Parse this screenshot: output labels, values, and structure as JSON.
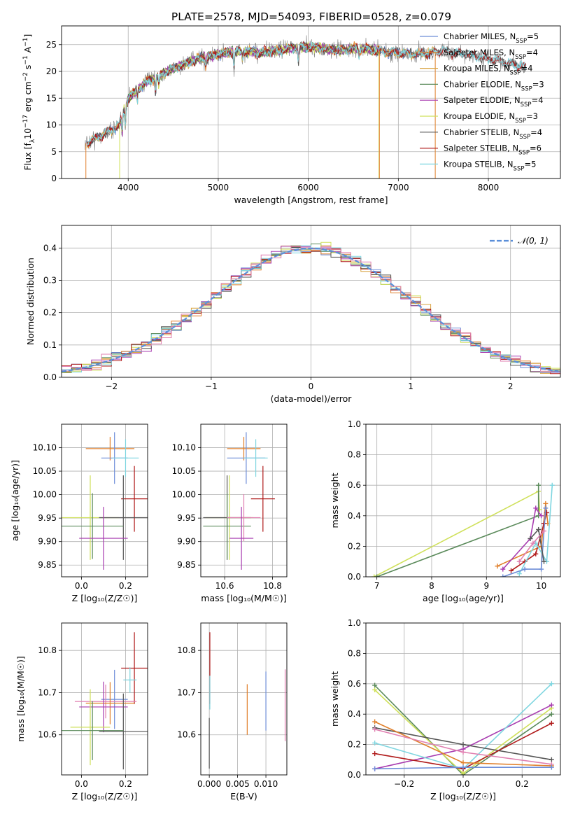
{
  "title": "PLATE=2578, MJD=54093, FIBERID=0528, z=0.079",
  "colors": {
    "chabrier_miles": "#6e8ed8",
    "salpeter_miles": "#e07f2a",
    "kroupa_miles": "#d9a441",
    "chabrier_elodie": "#5a8a5a",
    "salpeter_elodie": "#a83cb0",
    "kroupa_elodie": "#cfe05a",
    "chabrier_stelib": "#555555",
    "salpeter_stelib": "#b01a1a",
    "kroupa_stelib": "#7fd6e0",
    "pink": "#e07fb0",
    "gaussian": "#5b8fd9"
  },
  "chart_data": [
    {
      "id": "spectrum",
      "type": "line",
      "xlabel": "wavelength [Angstrom, rest frame]",
      "ylabel": "Flux [f",
      "ylabel_full": "Flux [fλ10⁻¹⁷ erg cm⁻² s⁻¹ A⁻¹]",
      "xlim": [
        3260,
        8800
      ],
      "ylim": [
        0,
        28.5
      ],
      "xticks": [
        "4000",
        "5000",
        "6000",
        "7000",
        "8000"
      ],
      "yticks": [
        "0",
        "5",
        "10",
        "15",
        "20",
        "25"
      ],
      "legend_position": "right",
      "legend": [
        "Chabrier MILES, N_SSP=5",
        "Salpeter MILES, N_SSP=4",
        "Kroupa MILES, N_SSP=4",
        "Chabrier ELODIE, N_SSP=3",
        "Salpeter ELODIE, N_SSP=4",
        "Kroupa ELODIE, N_SSP=3",
        "Chabrier STELIB, N_SSP=4",
        "Salpeter STELIB, N_SSP=6",
        "Kroupa STELIB, N_SSP=5"
      ],
      "continuum_x": [
        3520,
        3700,
        3900,
        4000,
        4200,
        4500,
        4800,
        5000,
        5200,
        5500,
        5800,
        6000,
        6300,
        6600,
        6900,
        7200,
        7500,
        7800,
        8100,
        8400
      ],
      "continuum_y": [
        6.5,
        8.0,
        10.0,
        15.0,
        18.0,
        20.5,
        22.5,
        23.2,
        23.8,
        23.5,
        24.3,
        24.6,
        24.0,
        24.3,
        23.6,
        23.2,
        23.8,
        23.0,
        22.0,
        20.8
      ]
    },
    {
      "id": "residual_histogram",
      "type": "line",
      "xlabel": "(data-model)/error",
      "ylabel": "Normed distribution",
      "xlim": [
        -2.5,
        2.5
      ],
      "ylim": [
        0,
        0.47
      ],
      "xticks": [
        "−2",
        "−1",
        "0",
        "1",
        "2"
      ],
      "yticks": [
        "0.0",
        "0.1",
        "0.2",
        "0.3",
        "0.4"
      ],
      "legend": [
        "𝒩(0, 1)"
      ],
      "legend_position": "top-right",
      "gaussian": {
        "mean": 0,
        "sigma": 1
      }
    },
    {
      "id": "age_vs_Z",
      "type": "scatter",
      "xlabel": "Z [log₁₀(Z/Z☉)]",
      "ylabel": "age  [log₁₀(age/yr)]",
      "xlim": [
        -0.09,
        0.3
      ],
      "ylim": [
        9.825,
        10.15
      ],
      "xticks": [
        "0.0",
        "0.2"
      ],
      "yticks": [
        "9.85",
        "9.90",
        "9.95",
        "10.00",
        "10.05",
        "10.10"
      ],
      "points": [
        {
          "c": "salpeter_miles",
          "x": 0.13,
          "xe": 0.11,
          "y": 10.098,
          "ye": 0.025
        },
        {
          "c": "chabrier_miles",
          "x": 0.15,
          "xe": 0.06,
          "y": 10.078,
          "ye": 0.055
        },
        {
          "c": "kroupa_stelib",
          "x": 0.2,
          "xe": 0.06,
          "y": 10.078,
          "ye": 0.04
        },
        {
          "c": "salpeter_stelib",
          "x": 0.24,
          "xe": 0.06,
          "y": 9.991,
          "ye": 0.07
        },
        {
          "c": "kroupa_elodie",
          "x": 0.04,
          "xe": 0.13,
          "y": 9.951,
          "ye": 0.09
        },
        {
          "c": "chabrier_stelib",
          "x": 0.19,
          "xe": 0.11,
          "y": 9.951,
          "ye": 0.09
        },
        {
          "c": "chabrier_elodie",
          "x": 0.05,
          "xe": 0.14,
          "y": 9.933,
          "ye": 0.07
        },
        {
          "c": "salpeter_elodie",
          "x": 0.1,
          "xe": 0.11,
          "y": 9.907,
          "ye": 0.067
        }
      ]
    },
    {
      "id": "age_vs_mass",
      "type": "scatter",
      "xlabel": "mass [log₁₀(M/M☉)]",
      "ylabel": "",
      "xlim": [
        10.5,
        10.86
      ],
      "ylim": [
        9.825,
        10.15
      ],
      "xticks": [
        "10.6",
        "10.8"
      ],
      "yticks": [
        "9.85",
        "9.90",
        "9.95",
        "10.00",
        "10.05",
        "10.10"
      ],
      "points": [
        {
          "c": "salpeter_miles",
          "x": 10.68,
          "xe": 0.07,
          "y": 10.098,
          "ye": 0.025
        },
        {
          "c": "chabrier_miles",
          "x": 10.69,
          "xe": 0.08,
          "y": 10.078,
          "ye": 0.055
        },
        {
          "c": "kroupa_stelib",
          "x": 10.73,
          "xe": 0.05,
          "y": 10.078,
          "ye": 0.04
        },
        {
          "c": "salpeter_stelib",
          "x": 10.76,
          "xe": 0.05,
          "y": 9.991,
          "ye": 0.07
        },
        {
          "c": "kroupa_elodie",
          "x": 10.62,
          "xe": 0.1,
          "y": 9.951,
          "ye": 0.09
        },
        {
          "c": "chabrier_stelib",
          "x": 10.61,
          "xe": 0.1,
          "y": 9.951,
          "ye": 0.09
        },
        {
          "c": "chabrier_elodie",
          "x": 10.61,
          "xe": 0.1,
          "y": 9.933,
          "ye": 0.07
        },
        {
          "c": "pink",
          "x": 10.68,
          "xe": 0.07,
          "y": 9.951,
          "ye": 0.05
        },
        {
          "c": "salpeter_elodie",
          "x": 10.67,
          "xe": 0.05,
          "y": 9.907,
          "ye": 0.067
        }
      ]
    },
    {
      "id": "mass_weight_vs_age",
      "type": "line",
      "xlabel": "age  [log₁₀(age/yr)]",
      "ylabel": "mass weight",
      "xlim": [
        6.8,
        10.35
      ],
      "ylim": [
        0,
        1.0
      ],
      "xticks": [
        "7",
        "8",
        "9",
        "10"
      ],
      "yticks": [
        "0.0",
        "0.2",
        "0.4",
        "0.6",
        "0.8",
        "1.0"
      ],
      "series": [
        {
          "c": "kroupa_elodie",
          "x": [
            6.95,
            9.95,
            9.97
          ],
          "y": [
            0.0,
            0.56,
            0.44
          ]
        },
        {
          "c": "chabrier_elodie",
          "x": [
            7.0,
            9.95,
            9.95
          ],
          "y": [
            0.0,
            0.4,
            0.6
          ]
        },
        {
          "c": "salpeter_miles",
          "x": [
            9.2,
            10.0,
            10.08,
            10.12
          ],
          "y": [
            0.07,
            0.2,
            0.48,
            0.35
          ]
        },
        {
          "c": "salpeter_elodie",
          "x": [
            9.3,
            9.8,
            9.9,
            10.0
          ],
          "y": [
            0.05,
            0.25,
            0.45,
            0.4
          ]
        },
        {
          "c": "salpeter_stelib",
          "x": [
            9.45,
            9.7,
            9.9,
            10.05,
            10.1
          ],
          "y": [
            0.04,
            0.1,
            0.15,
            0.35,
            0.42
          ]
        },
        {
          "c": "kroupa_stelib",
          "x": [
            9.6,
            9.9,
            10.1,
            10.2
          ],
          "y": [
            0.02,
            0.22,
            0.1,
            0.6
          ]
        },
        {
          "c": "chabrier_miles",
          "x": [
            9.3,
            9.7,
            10.0,
            10.08
          ],
          "y": [
            0.0,
            0.05,
            0.05,
            0.45
          ]
        },
        {
          "c": "chabrier_stelib",
          "x": [
            9.8,
            9.95,
            10.05
          ],
          "y": [
            0.25,
            0.31,
            0.1
          ]
        },
        {
          "c": "pink",
          "x": [
            9.6,
            9.85,
            10.05
          ],
          "y": [
            0.1,
            0.22,
            0.3
          ]
        }
      ]
    },
    {
      "id": "mass_vs_Z",
      "type": "scatter",
      "xlabel": "Z [log₁₀(Z/Z☉)]",
      "ylabel": "mass [log₁₀(M/M☉)]",
      "xlim": [
        -0.09,
        0.3
      ],
      "ylim": [
        10.505,
        10.865
      ],
      "xticks": [
        "0.0",
        "0.2"
      ],
      "yticks": [
        "10.6",
        "10.7",
        "10.8"
      ],
      "points": [
        {
          "c": "salpeter_stelib",
          "x": 0.24,
          "xe": 0.06,
          "y": 10.758,
          "ye": 0.085
        },
        {
          "c": "kroupa_stelib",
          "x": 0.22,
          "xe": 0.03,
          "y": 10.73,
          "ye": 0.03
        },
        {
          "c": "chabrier_miles",
          "x": 0.15,
          "xe": 0.06,
          "y": 10.684,
          "ye": 0.07
        },
        {
          "c": "pink",
          "x": 0.11,
          "xe": 0.14,
          "y": 10.679,
          "ye": 0.04
        },
        {
          "c": "salpeter_miles",
          "x": 0.13,
          "xe": 0.11,
          "y": 10.675,
          "ye": 0.05
        },
        {
          "c": "salpeter_elodie",
          "x": 0.1,
          "xe": 0.11,
          "y": 10.666,
          "ye": 0.06
        },
        {
          "c": "kroupa_elodie",
          "x": 0.04,
          "xe": 0.09,
          "y": 10.618,
          "ye": 0.09
        },
        {
          "c": "chabrier_stelib",
          "x": 0.19,
          "xe": 0.11,
          "y": 10.608,
          "ye": 0.09
        },
        {
          "c": "chabrier_elodie",
          "x": 0.05,
          "xe": 0.14,
          "y": 10.61,
          "ye": 0.07
        }
      ]
    },
    {
      "id": "mass_vs_ebv",
      "type": "scatter",
      "xlabel": "E(B-V)",
      "ylabel": "",
      "xlim": [
        -0.0015,
        0.0137
      ],
      "ylim": [
        10.505,
        10.865
      ],
      "xticks": [
        "0.000",
        "0.005",
        "0.010"
      ],
      "yticks": [
        "10.6",
        "10.7",
        "10.8"
      ],
      "points": [
        {
          "c": "salpeter_stelib",
          "x": 0.0001,
          "y": 10.758,
          "ye": 0.085
        },
        {
          "c": "kroupa_stelib",
          "x": 0.0001,
          "y": 10.7,
          "ye": 0.04
        },
        {
          "c": "chabrier_stelib",
          "x": 0.0,
          "y": 10.58,
          "ye": 0.06
        },
        {
          "c": "salpeter_miles",
          "x": 0.0067,
          "y": 10.66,
          "ye": 0.06
        },
        {
          "c": "chabrier_miles",
          "x": 0.01,
          "y": 10.68,
          "ye": 0.07
        },
        {
          "c": "pink",
          "x": 0.0134,
          "y": 10.67,
          "ye": 0.085
        }
      ]
    },
    {
      "id": "mass_weight_vs_Z",
      "type": "line",
      "xlabel": "Z [log₁₀(Z/Z☉)]",
      "ylabel": "mass weight",
      "xlim": [
        -0.33,
        0.33
      ],
      "ylim": [
        0,
        1.0
      ],
      "xticks": [
        "−0.2",
        "0.0",
        "0.2"
      ],
      "yticks": [
        "0.0",
        "0.2",
        "0.4",
        "0.6",
        "0.8",
        "1.0"
      ],
      "series": [
        {
          "c": "chabrier_elodie",
          "x": [
            -0.3,
            0.0,
            0.3
          ],
          "y": [
            0.59,
            0.0,
            0.4
          ]
        },
        {
          "c": "kroupa_elodie",
          "x": [
            -0.3,
            0.0,
            0.3
          ],
          "y": [
            0.56,
            0.01,
            0.44
          ]
        },
        {
          "c": "salpeter_elodie",
          "x": [
            -0.3,
            0.0,
            0.3
          ],
          "y": [
            0.04,
            0.17,
            0.46
          ]
        },
        {
          "c": "kroupa_stelib",
          "x": [
            -0.3,
            0.0,
            0.3
          ],
          "y": [
            0.21,
            0.04,
            0.6
          ]
        },
        {
          "c": "chabrier_stelib",
          "x": [
            -0.3,
            0.0,
            0.3
          ],
          "y": [
            0.31,
            0.2,
            0.1
          ]
        },
        {
          "c": "salpeter_stelib",
          "x": [
            -0.3,
            0.0,
            0.3
          ],
          "y": [
            0.14,
            0.04,
            0.34
          ]
        },
        {
          "c": "salpeter_miles",
          "x": [
            -0.3,
            0.0,
            0.3
          ],
          "y": [
            0.35,
            0.08,
            0.06
          ]
        },
        {
          "c": "pink",
          "x": [
            -0.3,
            0.0,
            0.3
          ],
          "y": [
            0.3,
            0.15,
            0.07
          ]
        },
        {
          "c": "chabrier_miles",
          "x": [
            -0.3,
            0.0,
            0.3
          ],
          "y": [
            0.04,
            0.05,
            0.05
          ]
        }
      ]
    }
  ]
}
